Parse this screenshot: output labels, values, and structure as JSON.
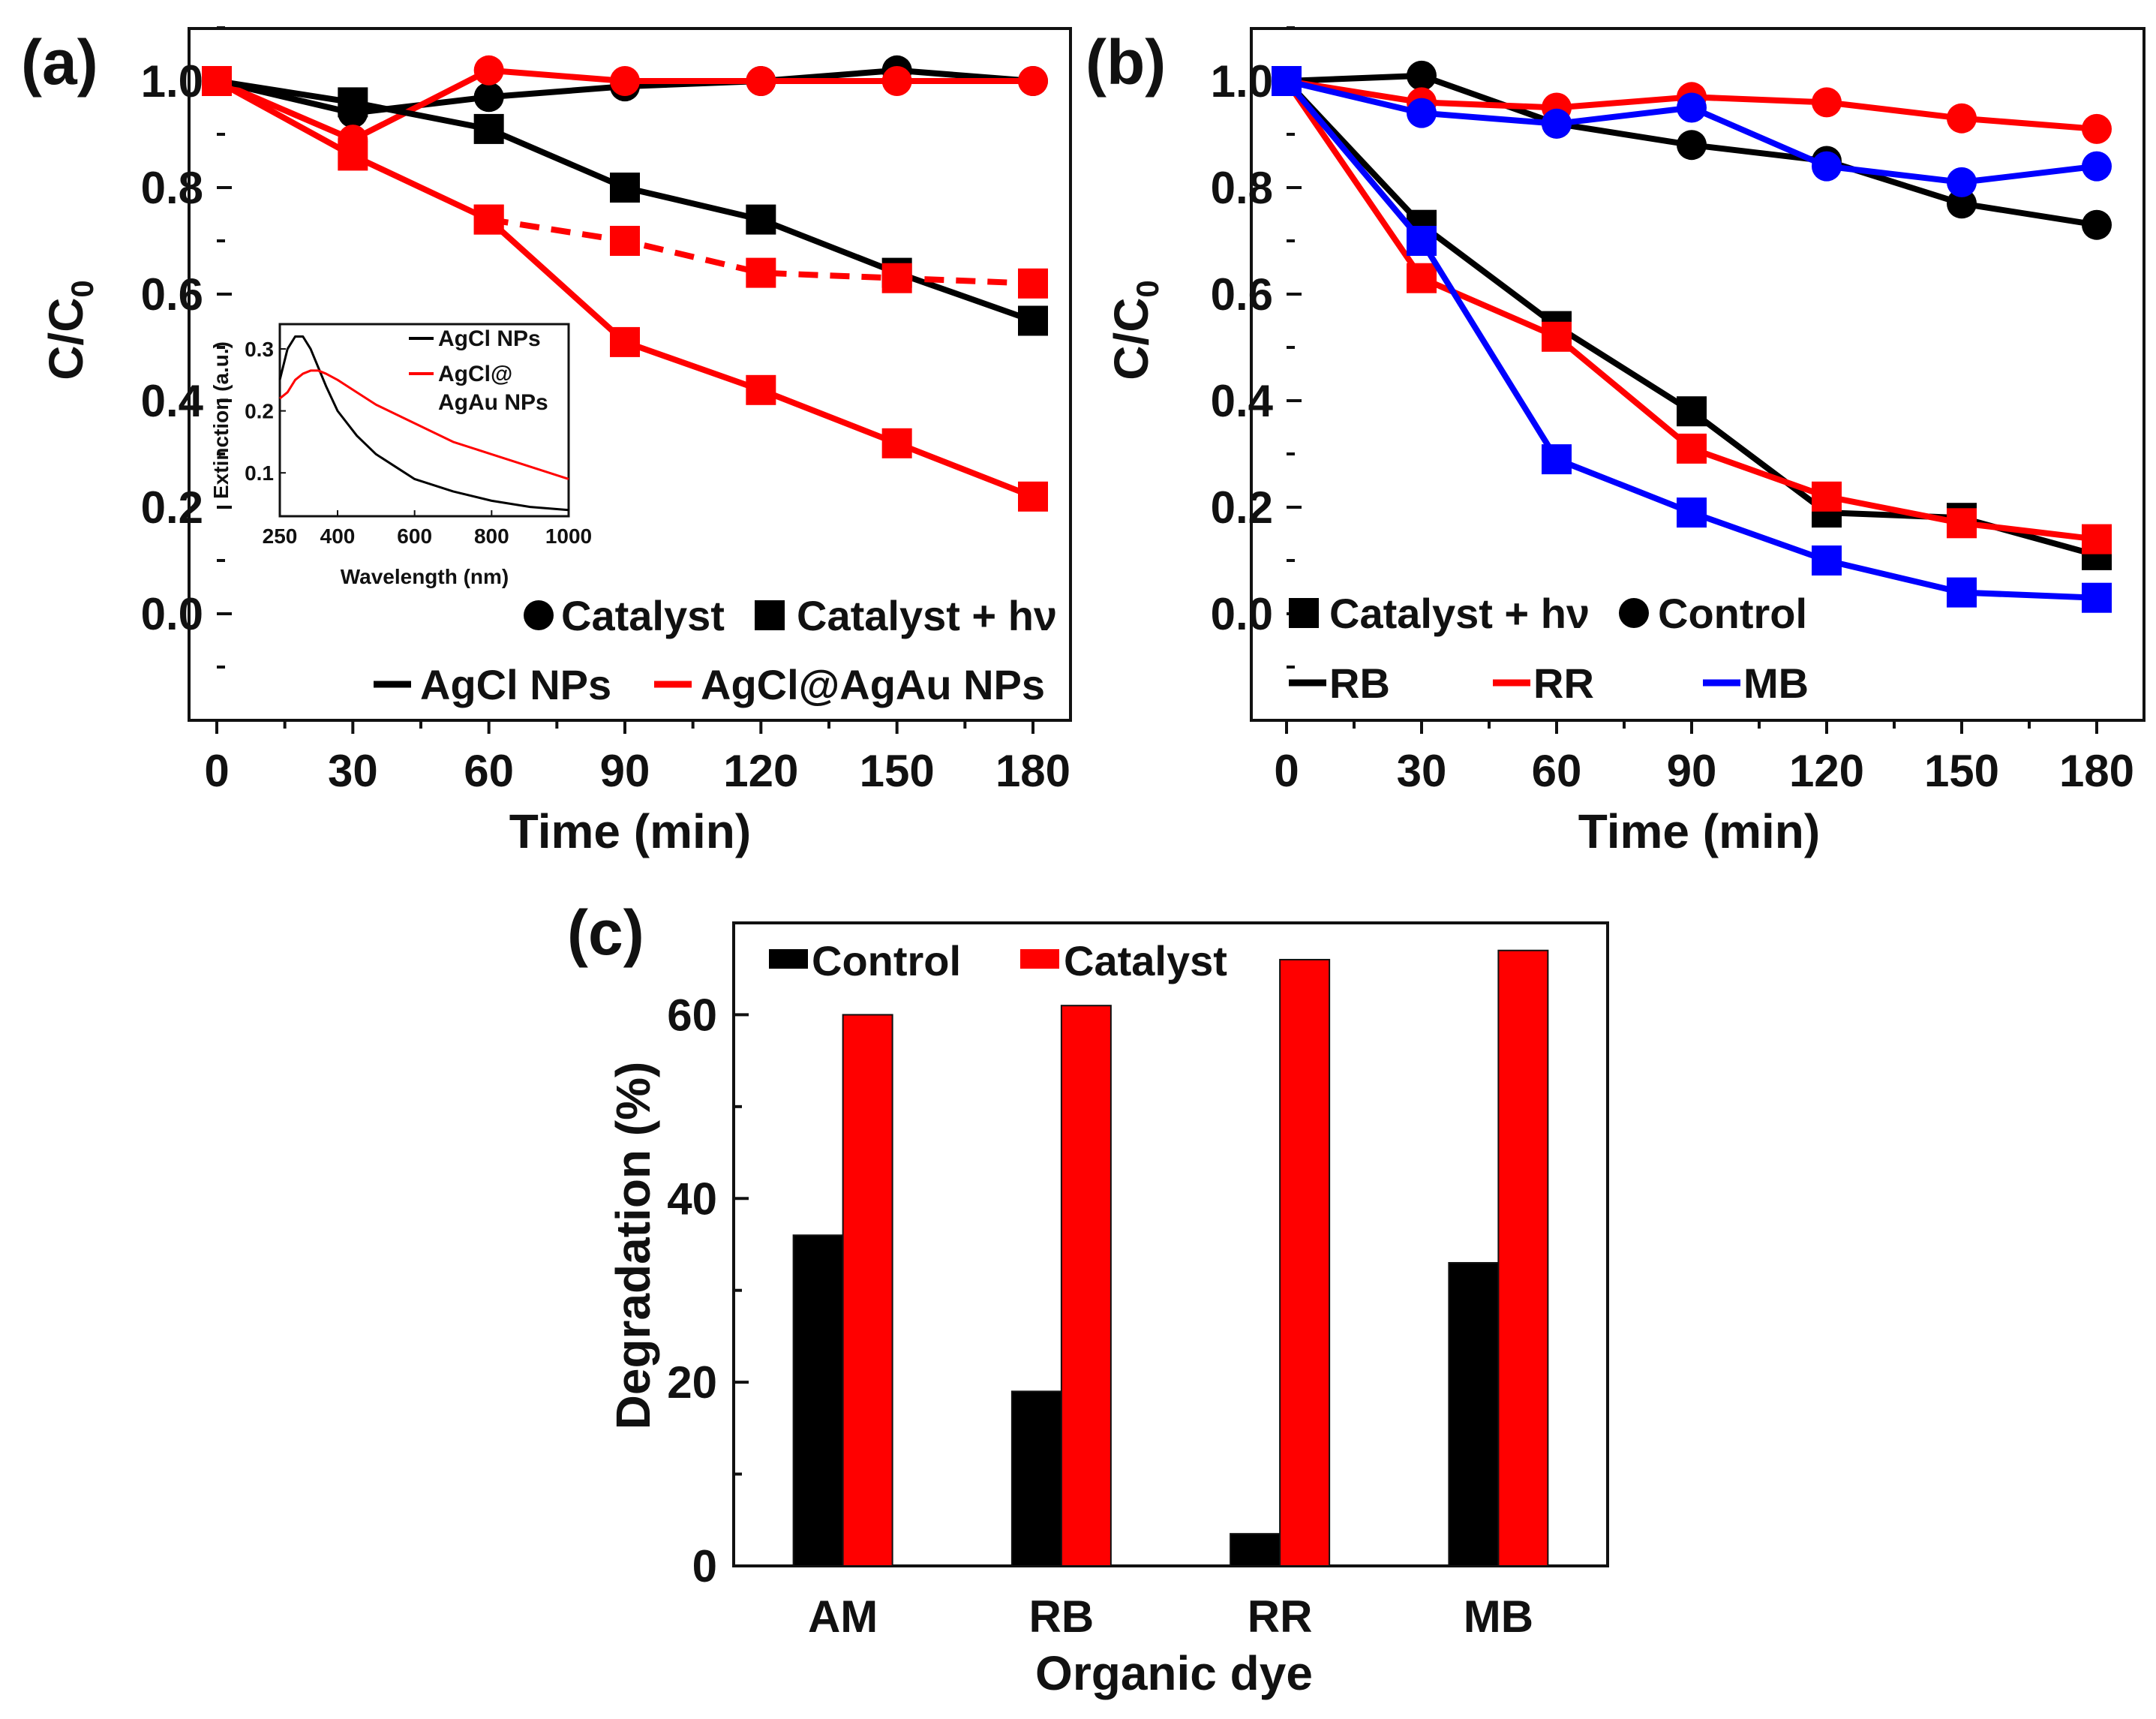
{
  "colors": {
    "black": "#000000",
    "red": "#ff0000",
    "blue": "#0000ff"
  },
  "chart_data": [
    {
      "panel": "(a)",
      "type": "line",
      "xlabel": "Time (min)",
      "ylabel": "C/C0",
      "xlim": [
        0,
        180
      ],
      "ylim": [
        -0.2,
        1.1
      ],
      "xticks": [
        "0",
        "30",
        "60",
        "90",
        "120",
        "150",
        "180"
      ],
      "yticks": [
        "0.0",
        "0.2",
        "0.4",
        "0.6",
        "0.8",
        "1.0"
      ],
      "x": [
        0,
        30,
        60,
        90,
        120,
        150,
        180
      ],
      "series": [
        {
          "name": "AgCl NPs, Catalyst",
          "color": "#000000",
          "marker": "circle",
          "dash": false,
          "values": [
            1.0,
            0.94,
            0.97,
            0.99,
            1.0,
            1.02,
            1.0
          ]
        },
        {
          "name": "AgCl@AgAu NPs, Catalyst",
          "color": "#ff0000",
          "marker": "circle",
          "dash": false,
          "values": [
            1.0,
            0.89,
            1.02,
            1.0,
            1.0,
            1.0,
            1.0
          ]
        },
        {
          "name": "AgCl NPs, Catalyst + hν",
          "color": "#000000",
          "marker": "square",
          "dash": false,
          "values": [
            1.0,
            0.96,
            0.91,
            0.8,
            0.74,
            0.64,
            0.55
          ]
        },
        {
          "name": "AgCl@AgAu NPs, Catalyst + hν",
          "color": "#ff0000",
          "marker": "square",
          "dash": false,
          "values": [
            1.0,
            0.86,
            0.74,
            0.51,
            0.42,
            0.32,
            0.22
          ]
        },
        {
          "name": "AgCl@AgAu NPs, Catalyst + hν (dashed)",
          "color": "#ff0000",
          "marker": "square",
          "dash": true,
          "x": [
            60,
            90,
            120,
            150,
            180
          ],
          "values": [
            0.74,
            0.7,
            0.64,
            0.63,
            0.62
          ]
        }
      ],
      "legend": {
        "markers": [
          {
            "label": "Catalyst",
            "marker": "circle"
          },
          {
            "label": "Catalyst + hν",
            "marker": "square"
          }
        ],
        "lines": [
          {
            "label": "AgCl NPs",
            "color": "#000000"
          },
          {
            "label": "AgCl@AgAu NPs",
            "color": "#ff0000"
          }
        ]
      },
      "inset": {
        "xlabel": "Wavelength (nm)",
        "ylabel": "Extinction (a.u.)",
        "xlim": [
          250,
          1000
        ],
        "ylim": [
          0.03,
          0.34
        ],
        "xticks": [
          "250",
          "400",
          "600",
          "800",
          "1000"
        ],
        "yticks": [
          "0.1",
          "0.2",
          "0.3"
        ],
        "series": [
          {
            "name": "AgCl NPs",
            "color": "#000000",
            "x": [
              250,
              270,
              290,
              310,
              330,
              350,
              370,
              400,
              450,
              500,
              550,
              600,
              650,
              700,
              800,
              900,
              1000
            ],
            "values": [
              0.25,
              0.3,
              0.32,
              0.32,
              0.3,
              0.27,
              0.24,
              0.2,
              0.16,
              0.13,
              0.11,
              0.09,
              0.08,
              0.07,
              0.055,
              0.045,
              0.04
            ]
          },
          {
            "name": "AgCl@AgAu NPs",
            "color": "#ff0000",
            "x": [
              250,
              270,
              290,
              310,
              330,
              350,
              370,
              400,
              450,
              500,
              550,
              600,
              650,
              700,
              800,
              900,
              1000
            ],
            "values": [
              0.22,
              0.23,
              0.25,
              0.26,
              0.265,
              0.265,
              0.26,
              0.25,
              0.23,
              0.21,
              0.195,
              0.18,
              0.165,
              0.15,
              0.13,
              0.11,
              0.09
            ]
          }
        ],
        "legend": [
          {
            "label": "AgCl NPs",
            "color": "#000000"
          },
          {
            "label": "AgCl@ AgAu NPs",
            "color": "#ff0000"
          }
        ]
      }
    },
    {
      "panel": "(b)",
      "type": "line",
      "xlabel": "Time (min)",
      "ylabel": "C/C0",
      "xlim": [
        0,
        180
      ],
      "ylim": [
        -0.2,
        1.1
      ],
      "xticks": [
        "0",
        "30",
        "60",
        "90",
        "120",
        "150",
        "180"
      ],
      "yticks": [
        "0.0",
        "0.2",
        "0.4",
        "0.6",
        "0.8",
        "1.0"
      ],
      "x": [
        0,
        30,
        60,
        90,
        120,
        150,
        180
      ],
      "series": [
        {
          "name": "RB, Control",
          "color": "#000000",
          "marker": "circle",
          "values": [
            1.0,
            1.01,
            0.92,
            0.88,
            0.85,
            0.77,
            0.73
          ]
        },
        {
          "name": "RR, Control",
          "color": "#ff0000",
          "marker": "circle",
          "values": [
            1.0,
            0.96,
            0.95,
            0.97,
            0.96,
            0.93,
            0.91
          ]
        },
        {
          "name": "MB, Control",
          "color": "#0000ff",
          "marker": "circle",
          "values": [
            1.0,
            0.94,
            0.92,
            0.95,
            0.84,
            0.81,
            0.84
          ]
        },
        {
          "name": "RB, Catalyst + hν",
          "color": "#000000",
          "marker": "square",
          "values": [
            1.0,
            0.73,
            0.54,
            0.38,
            0.19,
            0.18,
            0.11
          ]
        },
        {
          "name": "RR, Catalyst + hν",
          "color": "#ff0000",
          "marker": "square",
          "values": [
            1.0,
            0.63,
            0.52,
            0.31,
            0.22,
            0.17,
            0.14
          ]
        },
        {
          "name": "MB, Catalyst + hν",
          "color": "#0000ff",
          "marker": "square",
          "values": [
            1.0,
            0.7,
            0.29,
            0.19,
            0.1,
            0.04,
            0.03
          ]
        }
      ],
      "legend": {
        "markers": [
          {
            "label": "Catalyst + hν",
            "marker": "square"
          },
          {
            "label": "Control",
            "marker": "circle"
          }
        ],
        "lines": [
          {
            "label": "RB",
            "color": "#000000"
          },
          {
            "label": "RR",
            "color": "#ff0000"
          },
          {
            "label": "MB",
            "color": "#0000ff"
          }
        ]
      }
    },
    {
      "panel": "(c)",
      "type": "bar",
      "xlabel": "Organic dye",
      "ylabel": "Degradation (%)",
      "ylim": [
        0,
        70
      ],
      "yticks": [
        "0",
        "20",
        "40",
        "60"
      ],
      "categories": [
        "AM",
        "RB",
        "RR",
        "MB"
      ],
      "series": [
        {
          "name": "Control",
          "color": "#000000",
          "values": [
            36,
            19,
            3.5,
            33
          ]
        },
        {
          "name": "Catalyst",
          "color": "#ff0000",
          "values": [
            60,
            61,
            66,
            67
          ]
        }
      ]
    }
  ]
}
